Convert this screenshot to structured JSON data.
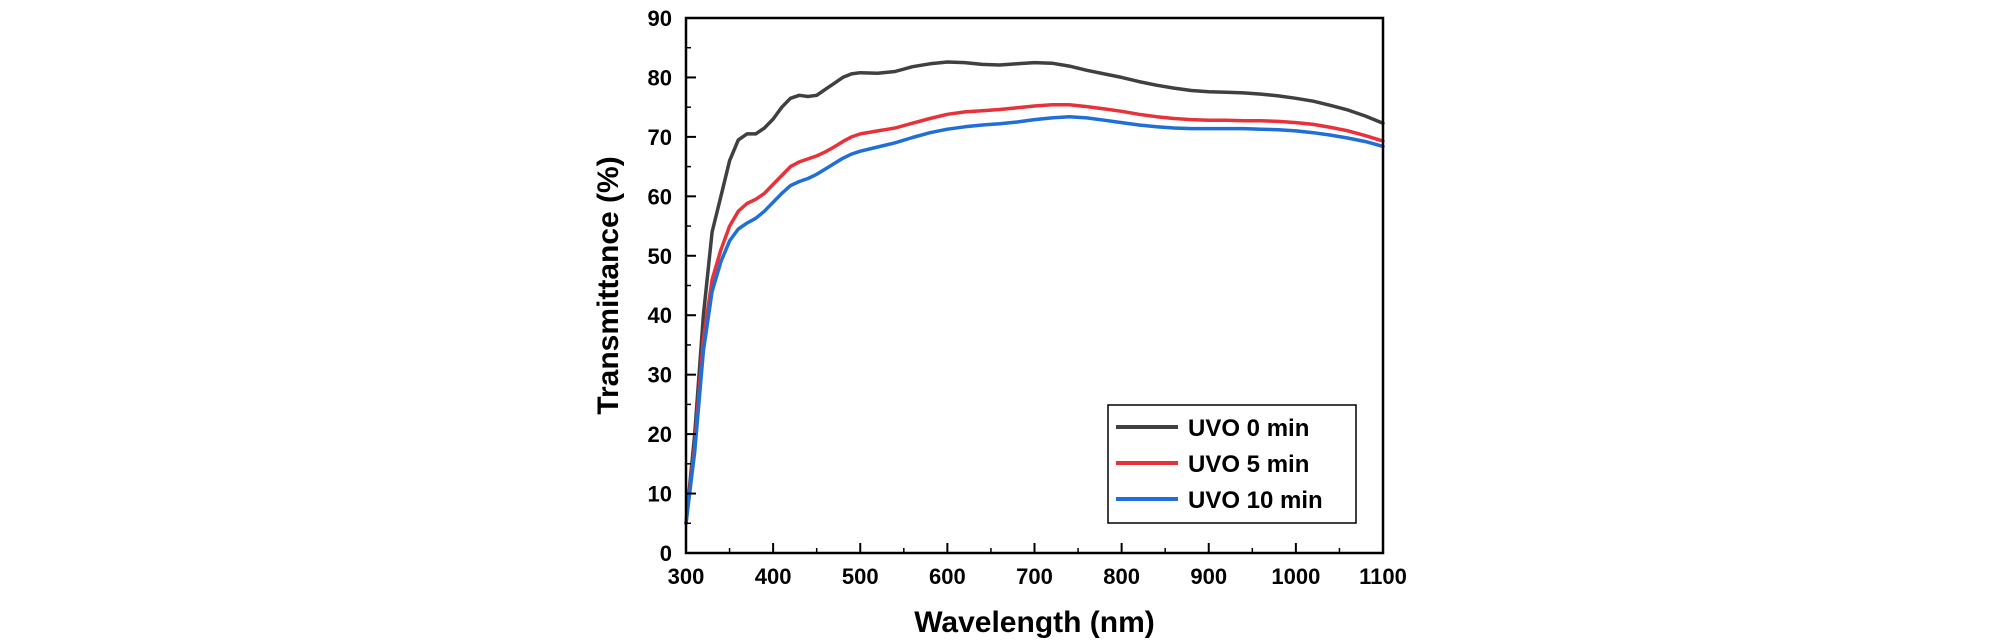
{
  "chart_data": {
    "type": "line",
    "xlabel": "Wavelength (nm)",
    "ylabel": "Transmittance (%)",
    "xlim": [
      300,
      1100
    ],
    "ylim": [
      0,
      90
    ],
    "xticks": [
      300,
      400,
      500,
      600,
      700,
      800,
      900,
      1000,
      1100
    ],
    "yticks": [
      0,
      10,
      20,
      30,
      40,
      50,
      60,
      70,
      80,
      90
    ],
    "legend_position": "bottom-right",
    "grid": false,
    "series": [
      {
        "name": "UVO 0 min",
        "color": "#404040",
        "x": [
          300,
          310,
          320,
          330,
          340,
          350,
          360,
          370,
          380,
          390,
          400,
          410,
          420,
          430,
          440,
          450,
          460,
          470,
          480,
          490,
          500,
          520,
          540,
          560,
          580,
          600,
          620,
          640,
          660,
          680,
          700,
          720,
          740,
          760,
          780,
          800,
          820,
          840,
          860,
          880,
          900,
          920,
          940,
          960,
          980,
          1000,
          1020,
          1040,
          1060,
          1080,
          1100
        ],
        "y": [
          5,
          20,
          40,
          54,
          60,
          66,
          69.5,
          70.5,
          70.5,
          71.5,
          73,
          75,
          76.5,
          77,
          76.8,
          77,
          78,
          79,
          80,
          80.6,
          80.8,
          80.7,
          81,
          81.8,
          82.3,
          82.6,
          82.5,
          82.2,
          82.1,
          82.3,
          82.5,
          82.4,
          81.9,
          81.2,
          80.6,
          80,
          79.3,
          78.7,
          78.2,
          77.8,
          77.6,
          77.5,
          77.4,
          77.2,
          76.9,
          76.5,
          76,
          75.3,
          74.5,
          73.5,
          72.3
        ]
      },
      {
        "name": "UVO 5 min",
        "color": "#e8323a",
        "x": [
          300,
          310,
          320,
          330,
          340,
          350,
          360,
          370,
          380,
          390,
          400,
          410,
          420,
          430,
          440,
          450,
          460,
          470,
          480,
          490,
          500,
          520,
          540,
          560,
          580,
          600,
          620,
          640,
          660,
          680,
          700,
          720,
          740,
          760,
          780,
          800,
          820,
          840,
          860,
          880,
          900,
          920,
          940,
          960,
          980,
          1000,
          1020,
          1040,
          1060,
          1080,
          1100
        ],
        "y": [
          5,
          18,
          36,
          46,
          51,
          55,
          57.5,
          58.8,
          59.5,
          60.5,
          62,
          63.5,
          65,
          65.8,
          66.3,
          66.8,
          67.5,
          68.3,
          69.2,
          70,
          70.5,
          71,
          71.5,
          72.3,
          73.1,
          73.8,
          74.2,
          74.4,
          74.6,
          74.9,
          75.2,
          75.4,
          75.4,
          75.1,
          74.7,
          74.3,
          73.8,
          73.4,
          73.1,
          72.9,
          72.8,
          72.8,
          72.7,
          72.7,
          72.6,
          72.4,
          72.1,
          71.6,
          71,
          70.2,
          69.3
        ]
      },
      {
        "name": "UVO 10 min",
        "color": "#1f6fd6",
        "x": [
          300,
          310,
          320,
          330,
          340,
          350,
          360,
          370,
          380,
          390,
          400,
          410,
          420,
          430,
          440,
          450,
          460,
          470,
          480,
          490,
          500,
          520,
          540,
          560,
          580,
          600,
          620,
          640,
          660,
          680,
          700,
          720,
          740,
          760,
          780,
          800,
          820,
          840,
          860,
          880,
          900,
          920,
          940,
          960,
          980,
          1000,
          1020,
          1040,
          1060,
          1080,
          1100
        ],
        "y": [
          5,
          17,
          34,
          44,
          49,
          52.5,
          54.5,
          55.5,
          56.3,
          57.5,
          59,
          60.5,
          61.8,
          62.5,
          63,
          63.7,
          64.6,
          65.5,
          66.4,
          67.1,
          67.6,
          68.3,
          69,
          69.9,
          70.7,
          71.3,
          71.7,
          72,
          72.2,
          72.5,
          72.9,
          73.2,
          73.4,
          73.2,
          72.8,
          72.4,
          72,
          71.7,
          71.5,
          71.4,
          71.4,
          71.4,
          71.4,
          71.3,
          71.2,
          71,
          70.7,
          70.3,
          69.8,
          69.2,
          68.4
        ]
      }
    ]
  }
}
